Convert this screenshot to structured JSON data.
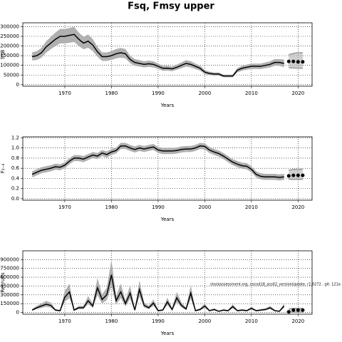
{
  "chart_data": [
    {
      "type": "line",
      "title": "Fsq, Fmsy upper",
      "y_label": "SSB",
      "x_label": "Years",
      "grid": true,
      "color": "#000000",
      "band_color": "#b0b0b0",
      "xlim": [
        1961,
        2023
      ],
      "xticks": [
        1970,
        1980,
        1990,
        2000,
        2010,
        2020
      ],
      "ylim": [
        -8000,
        320000
      ],
      "yticks": [
        0,
        50000,
        100000,
        150000,
        200000,
        250000,
        300000
      ],
      "x": [
        1963,
        1964,
        1965,
        1966,
        1967,
        1968,
        1969,
        1970,
        1971,
        1972,
        1973,
        1974,
        1975,
        1976,
        1977,
        1978,
        1979,
        1980,
        1981,
        1982,
        1983,
        1984,
        1985,
        1986,
        1987,
        1988,
        1989,
        1990,
        1991,
        1992,
        1993,
        1994,
        1995,
        1996,
        1997,
        1998,
        1999,
        2000,
        2001,
        2002,
        2003,
        2004,
        2005,
        2006,
        2007,
        2008,
        2009,
        2010,
        2011,
        2012,
        2013,
        2014,
        2015,
        2016,
        2017
      ],
      "values": [
        145000,
        150000,
        165000,
        195000,
        215000,
        235000,
        250000,
        250000,
        255000,
        260000,
        235000,
        215000,
        225000,
        205000,
        170000,
        145000,
        145000,
        150000,
        160000,
        165000,
        160000,
        130000,
        115000,
        110000,
        105000,
        108000,
        105000,
        95000,
        85000,
        85000,
        82000,
        90000,
        100000,
        110000,
        105000,
        95000,
        85000,
        65000,
        58000,
        55000,
        55000,
        45000,
        45000,
        45000,
        75000,
        85000,
        90000,
        95000,
        95000,
        95000,
        100000,
        105000,
        115000,
        115000,
        110000
      ],
      "lower": [
        125000,
        128000,
        140000,
        165000,
        183000,
        200000,
        213000,
        213000,
        217000,
        221000,
        200000,
        183000,
        191000,
        174000,
        145000,
        123000,
        123000,
        128000,
        136000,
        140000,
        136000,
        111000,
        98000,
        94000,
        89000,
        92000,
        89000,
        81000,
        72000,
        72000,
        70000,
        77000,
        85000,
        94000,
        89000,
        81000,
        72000,
        55000,
        49000,
        47000,
        47000,
        38000,
        38000,
        38000,
        64000,
        72000,
        77000,
        81000,
        81000,
        81000,
        85000,
        89000,
        98000,
        98000,
        90000
      ],
      "upper": [
        167000,
        173000,
        190000,
        224000,
        247000,
        270000,
        288000,
        288000,
        293000,
        299000,
        270000,
        247000,
        259000,
        236000,
        196000,
        167000,
        167000,
        173000,
        184000,
        190000,
        184000,
        150000,
        132000,
        127000,
        121000,
        124000,
        121000,
        109000,
        98000,
        98000,
        94000,
        104000,
        115000,
        127000,
        121000,
        109000,
        98000,
        75000,
        67000,
        63000,
        63000,
        52000,
        52000,
        52000,
        86000,
        98000,
        104000,
        109000,
        109000,
        109000,
        115000,
        121000,
        132000,
        132000,
        130000
      ],
      "projection": {
        "x": [
          2018,
          2019,
          2020,
          2021
        ],
        "values": [
          120000,
          120000,
          118000,
          118000
        ],
        "lower": [
          88000,
          86000,
          85000,
          85000
        ],
        "upper": [
          155000,
          162000,
          165000,
          165000
        ]
      }
    },
    {
      "type": "line",
      "y_label": "F₂₋₄",
      "x_label": "Years",
      "grid": true,
      "color": "#000000",
      "band_color": "#b0b0b0",
      "xlim": [
        1961,
        2023
      ],
      "xticks": [
        1970,
        1980,
        1990,
        2000,
        2010,
        2020
      ],
      "ylim": [
        -0.03,
        1.22
      ],
      "yticks": [
        {
          "value": 0,
          "label": "0.0"
        },
        0.2,
        0.4,
        0.6,
        0.8,
        {
          "value": 1,
          "label": "1.0"
        },
        1.2
      ],
      "x": [
        1963,
        1964,
        1965,
        1966,
        1967,
        1968,
        1969,
        1970,
        1971,
        1972,
        1973,
        1974,
        1975,
        1976,
        1977,
        1978,
        1979,
        1980,
        1981,
        1982,
        1983,
        1984,
        1985,
        1986,
        1987,
        1988,
        1989,
        1990,
        1991,
        1992,
        1993,
        1994,
        1995,
        1996,
        1997,
        1998,
        1999,
        2000,
        2001,
        2002,
        2003,
        2004,
        2005,
        2006,
        2007,
        2008,
        2009,
        2010,
        2011,
        2012,
        2013,
        2014,
        2015,
        2016,
        2017
      ],
      "values": [
        0.48,
        0.52,
        0.56,
        0.58,
        0.6,
        0.63,
        0.62,
        0.66,
        0.74,
        0.8,
        0.8,
        0.78,
        0.82,
        0.86,
        0.84,
        0.9,
        0.87,
        0.92,
        0.95,
        1.04,
        1.04,
        1.0,
        0.97,
        1.0,
        0.98,
        1.0,
        1.02,
        0.96,
        0.94,
        0.94,
        0.94,
        0.95,
        0.97,
        0.98,
        0.98,
        1.0,
        1.04,
        1.03,
        0.96,
        0.92,
        0.89,
        0.84,
        0.78,
        0.72,
        0.68,
        0.65,
        0.64,
        0.58,
        0.48,
        0.44,
        0.43,
        0.43,
        0.43,
        0.42,
        0.43
      ],
      "lower": [
        0.42,
        0.46,
        0.5,
        0.52,
        0.54,
        0.57,
        0.56,
        0.6,
        0.68,
        0.74,
        0.74,
        0.72,
        0.76,
        0.8,
        0.78,
        0.84,
        0.81,
        0.86,
        0.89,
        0.98,
        0.98,
        0.94,
        0.91,
        0.94,
        0.92,
        0.94,
        0.96,
        0.9,
        0.88,
        0.88,
        0.88,
        0.89,
        0.91,
        0.92,
        0.92,
        0.94,
        0.98,
        0.97,
        0.9,
        0.86,
        0.83,
        0.78,
        0.72,
        0.66,
        0.62,
        0.59,
        0.58,
        0.52,
        0.42,
        0.38,
        0.37,
        0.37,
        0.37,
        0.36,
        0.37
      ],
      "upper": [
        0.54,
        0.58,
        0.62,
        0.64,
        0.66,
        0.69,
        0.68,
        0.72,
        0.8,
        0.86,
        0.86,
        0.84,
        0.88,
        0.92,
        0.9,
        0.96,
        0.93,
        0.98,
        1.01,
        1.1,
        1.1,
        1.06,
        1.03,
        1.06,
        1.04,
        1.06,
        1.08,
        1.02,
        1.0,
        1.0,
        1.0,
        1.01,
        1.03,
        1.04,
        1.04,
        1.06,
        1.1,
        1.09,
        1.02,
        0.98,
        0.95,
        0.9,
        0.84,
        0.78,
        0.74,
        0.71,
        0.7,
        0.64,
        0.54,
        0.5,
        0.49,
        0.49,
        0.49,
        0.48,
        0.49
      ],
      "projection": {
        "x": [
          2018,
          2019,
          2020,
          2021
        ],
        "values": [
          0.45,
          0.46,
          0.46,
          0.46
        ],
        "lower": [
          0.38,
          0.38,
          0.38,
          0.38
        ],
        "upper": [
          0.56,
          0.58,
          0.58,
          0.58
        ]
      }
    },
    {
      "type": "line",
      "y_label": "Recruits",
      "x_label": "Years",
      "grid": true,
      "color": "#000000",
      "band_color": "#b0b0b0",
      "annotation": "stockassessment.org, nscod18_ass02_versionUpdate, r1.0272 , git: 121a",
      "xlim": [
        1961,
        2023
      ],
      "xticks": [
        1970,
        1980,
        1990,
        2000,
        2010,
        2020
      ],
      "ylim": [
        -30000,
        1050000
      ],
      "yticks": [
        0,
        150000,
        300000,
        450000,
        600000,
        750000,
        900000
      ],
      "x": [
        1963,
        1964,
        1965,
        1966,
        1967,
        1968,
        1969,
        1970,
        1971,
        1972,
        1973,
        1974,
        1975,
        1976,
        1977,
        1978,
        1979,
        1980,
        1981,
        1982,
        1983,
        1984,
        1985,
        1986,
        1987,
        1988,
        1989,
        1990,
        1991,
        1992,
        1993,
        1994,
        1995,
        1996,
        1997,
        1998,
        1999,
        2000,
        2001,
        2002,
        2003,
        2004,
        2005,
        2006,
        2007,
        2008,
        2009,
        2010,
        2011,
        2012,
        2013,
        2014,
        2015,
        2016,
        2017
      ],
      "values": [
        40000,
        80000,
        110000,
        140000,
        120000,
        40000,
        30000,
        260000,
        350000,
        40000,
        80000,
        80000,
        200000,
        110000,
        420000,
        220000,
        300000,
        640000,
        200000,
        350000,
        150000,
        330000,
        40000,
        390000,
        120000,
        80000,
        160000,
        30000,
        40000,
        180000,
        50000,
        250000,
        120000,
        60000,
        330000,
        30000,
        50000,
        110000,
        30000,
        50000,
        20000,
        40000,
        30000,
        100000,
        30000,
        40000,
        30000,
        70000,
        30000,
        40000,
        50000,
        80000,
        30000,
        20000,
        110000
      ],
      "lower": [
        28000,
        56000,
        77000,
        98000,
        84000,
        28000,
        21000,
        182000,
        245000,
        28000,
        56000,
        56000,
        140000,
        77000,
        294000,
        154000,
        210000,
        448000,
        140000,
        245000,
        105000,
        231000,
        28000,
        273000,
        84000,
        56000,
        112000,
        21000,
        28000,
        126000,
        35000,
        175000,
        84000,
        42000,
        231000,
        21000,
        35000,
        77000,
        21000,
        35000,
        14000,
        28000,
        21000,
        70000,
        21000,
        28000,
        21000,
        49000,
        21000,
        28000,
        35000,
        56000,
        21000,
        14000,
        77000
      ],
      "upper": [
        56000,
        112000,
        154000,
        196000,
        168000,
        56000,
        42000,
        364000,
        490000,
        56000,
        112000,
        112000,
        280000,
        154000,
        588000,
        308000,
        420000,
        896000,
        280000,
        490000,
        210000,
        462000,
        56000,
        546000,
        168000,
        112000,
        224000,
        42000,
        56000,
        252000,
        70000,
        350000,
        168000,
        84000,
        462000,
        42000,
        70000,
        154000,
        42000,
        70000,
        28000,
        56000,
        42000,
        140000,
        42000,
        56000,
        42000,
        98000,
        42000,
        56000,
        70000,
        112000,
        42000,
        28000,
        154000
      ],
      "projection": {
        "x": [
          2018,
          2019,
          2020,
          2021
        ],
        "values": [
          10000,
          40000,
          40000,
          40000
        ],
        "lower": [
          3000,
          5000,
          5000,
          5000
        ],
        "upper": [
          60000,
          70000,
          70000,
          70000
        ]
      }
    }
  ]
}
